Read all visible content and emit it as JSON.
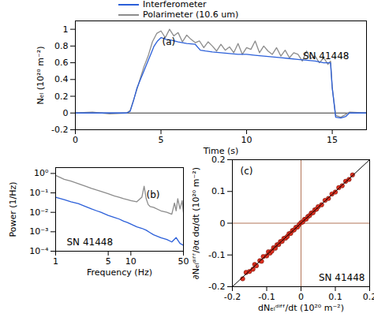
{
  "chart_data": [
    {
      "type": "line",
      "x_label": "Time (s)",
      "y_label": "Nₑₗ (10²⁰ m⁻²)",
      "annotations": [
        "(a)",
        "SN 41448"
      ],
      "legend": "top",
      "xlim": [
        0,
        17
      ],
      "xticks": [
        0,
        5,
        10,
        15
      ],
      "ylim": [
        -0.2,
        1.1
      ],
      "yticks": [
        -0.2,
        0,
        0.2,
        0.4,
        0.6,
        0.8,
        1
      ],
      "reference_lines": {
        "y": 0,
        "color": "#000000"
      },
      "series": [
        {
          "name": "Interferometer",
          "color": "#2b5fd9",
          "x": [
            0,
            3,
            3.2,
            3.4,
            3.6,
            3.8,
            4,
            4.2,
            4.4,
            4.6,
            4.8,
            5,
            5.3,
            5.6,
            6,
            6.5,
            7,
            7.3,
            7.6,
            8,
            8.5,
            9,
            9.5,
            10,
            10.5,
            11,
            11.5,
            12,
            12.5,
            13,
            13.5,
            14,
            14.5,
            14.9,
            15.0,
            15.2,
            15.5,
            15.8,
            16,
            17
          ],
          "values": [
            0,
            0,
            0.02,
            0.15,
            0.3,
            0.4,
            0.5,
            0.6,
            0.7,
            0.8,
            0.86,
            0.9,
            0.88,
            0.87,
            0.85,
            0.83,
            0.82,
            0.75,
            0.74,
            0.73,
            0.72,
            0.71,
            0.7,
            0.7,
            0.69,
            0.68,
            0.67,
            0.66,
            0.65,
            0.64,
            0.63,
            0.62,
            0.6,
            0.6,
            0.3,
            -0.05,
            -0.06,
            -0.04,
            0,
            0
          ]
        },
        {
          "name": "Polarimeter (10.6 um)",
          "color": "#8c8c8c",
          "x": [
            0,
            1,
            2,
            3,
            3.2,
            3.5,
            3.8,
            4,
            4.25,
            4.5,
            4.75,
            5,
            5.25,
            5.5,
            5.75,
            6,
            6.25,
            6.5,
            6.75,
            7,
            7.25,
            7.5,
            7.75,
            8,
            8.25,
            8.5,
            8.75,
            9,
            9.25,
            9.5,
            9.75,
            10,
            10.25,
            10.5,
            10.75,
            11,
            11.25,
            11.5,
            11.75,
            12,
            12.25,
            12.5,
            12.75,
            13,
            13.25,
            13.5,
            13.75,
            14,
            14.25,
            14.5,
            14.75,
            14.9,
            15,
            15.2,
            15.5,
            16,
            17
          ],
          "values": [
            0,
            0.01,
            -0.01,
            0,
            0.03,
            0.22,
            0.42,
            0.55,
            0.68,
            0.85,
            0.95,
            0.98,
            0.9,
            1.0,
            0.92,
            0.96,
            0.85,
            0.93,
            0.88,
            0.84,
            0.86,
            0.78,
            0.85,
            0.8,
            0.74,
            0.82,
            0.75,
            0.79,
            0.72,
            0.83,
            0.7,
            0.78,
            0.76,
            0.86,
            0.72,
            0.8,
            0.74,
            0.7,
            0.78,
            0.68,
            0.75,
            0.66,
            0.72,
            0.7,
            0.62,
            0.74,
            0.65,
            0.68,
            0.6,
            0.66,
            0.58,
            0.62,
            0.3,
            -0.03,
            -0.05,
            0.01,
            0
          ]
        }
      ]
    },
    {
      "type": "line",
      "x_label": "Frequency (Hz)",
      "y_label": "Power (1/Hz)",
      "annotations": [
        "(b)",
        "SN 41448"
      ],
      "log": true,
      "xlim": [
        1,
        50
      ],
      "xticks": [
        1,
        5,
        10,
        50
      ],
      "ylim": [
        0.0001,
        2
      ],
      "yticks": [
        {
          "value": 0.0001,
          "label": "10⁻⁴"
        },
        {
          "value": 0.001,
          "label": "10⁻³"
        },
        {
          "value": 0.01,
          "label": "10⁻²"
        },
        {
          "value": 0.1,
          "label": "10⁻¹"
        },
        {
          "value": 1,
          "label": "10⁰"
        }
      ],
      "series": [
        {
          "name": "Interferometer",
          "color": "#2b5fd9",
          "x": [
            1,
            1.3,
            1.6,
            2,
            2.5,
            3,
            3.5,
            4,
            5,
            6,
            7,
            8,
            9,
            10,
            12,
            14,
            16,
            18,
            20,
            25,
            30,
            35,
            40,
            45,
            50
          ],
          "values": [
            0.06,
            0.045,
            0.035,
            0.028,
            0.02,
            0.015,
            0.012,
            0.01,
            0.007,
            0.0055,
            0.0045,
            0.0035,
            0.003,
            0.0025,
            0.0018,
            0.0015,
            0.0012,
            0.0009,
            0.0007,
            0.0005,
            0.0004,
            0.0003,
            0.0005,
            0.00025,
            0.0002
          ]
        },
        {
          "name": "Polarimeter (10.6 um)",
          "color": "#8c8c8c",
          "x": [
            1,
            1.3,
            1.6,
            2,
            2.5,
            3,
            3.5,
            4,
            5,
            6,
            7,
            8,
            9,
            10,
            12,
            14,
            15,
            16,
            17,
            18,
            20,
            25,
            30,
            35,
            38,
            40,
            42,
            45,
            48,
            50
          ],
          "values": [
            0.8,
            0.5,
            0.4,
            0.3,
            0.22,
            0.17,
            0.14,
            0.12,
            0.09,
            0.07,
            0.06,
            0.05,
            0.045,
            0.04,
            0.035,
            0.06,
            0.22,
            0.05,
            0.025,
            0.02,
            0.018,
            0.012,
            0.01,
            0.008,
            0.03,
            0.012,
            0.05,
            0.015,
            0.04,
            0.01
          ]
        }
      ]
    },
    {
      "type": "scatter",
      "x_label": "dNₑₗᵈⁱᶠᶠ/dt (10²⁰ m⁻²)",
      "y_label": "∂Nₑₗᵈⁱᶠᶠ/∂α dα/dt (10²⁰ m⁻²)",
      "annotations": [
        "(c)",
        "SN 41448"
      ],
      "color": "#e03020",
      "marker": "circle",
      "xlim": [
        -0.2,
        0.2
      ],
      "xticks": [
        -0.2,
        -0.1,
        0,
        0.1,
        0.2
      ],
      "ylim": [
        -0.2,
        0.2
      ],
      "yticks": [
        -0.2,
        -0.1,
        0,
        0.1,
        0.2
      ],
      "zero_lines": {
        "x": 0,
        "y": 0,
        "color": "#a0522d"
      },
      "diagonal": {
        "x": [
          -0.2,
          0.2
        ],
        "y": [
          -0.2,
          0.2
        ],
        "color": "#000000"
      },
      "x": [
        -0.17,
        -0.16,
        -0.15,
        -0.14,
        -0.135,
        -0.13,
        -0.12,
        -0.115,
        -0.11,
        -0.1,
        -0.095,
        -0.09,
        -0.085,
        -0.08,
        -0.075,
        -0.07,
        -0.065,
        -0.06,
        -0.055,
        -0.05,
        -0.045,
        -0.04,
        -0.035,
        -0.03,
        -0.025,
        -0.02,
        -0.015,
        -0.01,
        -0.005,
        0,
        0.005,
        0.01,
        0.015,
        0.02,
        0.025,
        0.03,
        0.035,
        0.04,
        0.045,
        0.05,
        0.06,
        0.07,
        0.08,
        0.09,
        0.1,
        0.11,
        0.12,
        0.13,
        0.14,
        0.15
      ],
      "values": [
        -0.175,
        -0.155,
        -0.152,
        -0.145,
        -0.13,
        -0.134,
        -0.118,
        -0.12,
        -0.105,
        -0.103,
        -0.09,
        -0.094,
        -0.088,
        -0.077,
        -0.079,
        -0.068,
        -0.067,
        -0.058,
        -0.057,
        -0.048,
        -0.047,
        -0.042,
        -0.033,
        -0.032,
        -0.023,
        -0.021,
        -0.013,
        -0.012,
        -0.004,
        0.002,
        0.004,
        0.012,
        0.013,
        0.021,
        0.024,
        0.032,
        0.033,
        0.042,
        0.044,
        0.052,
        0.058,
        0.072,
        0.078,
        0.092,
        0.098,
        0.112,
        0.118,
        0.132,
        0.138,
        0.152
      ]
    }
  ]
}
